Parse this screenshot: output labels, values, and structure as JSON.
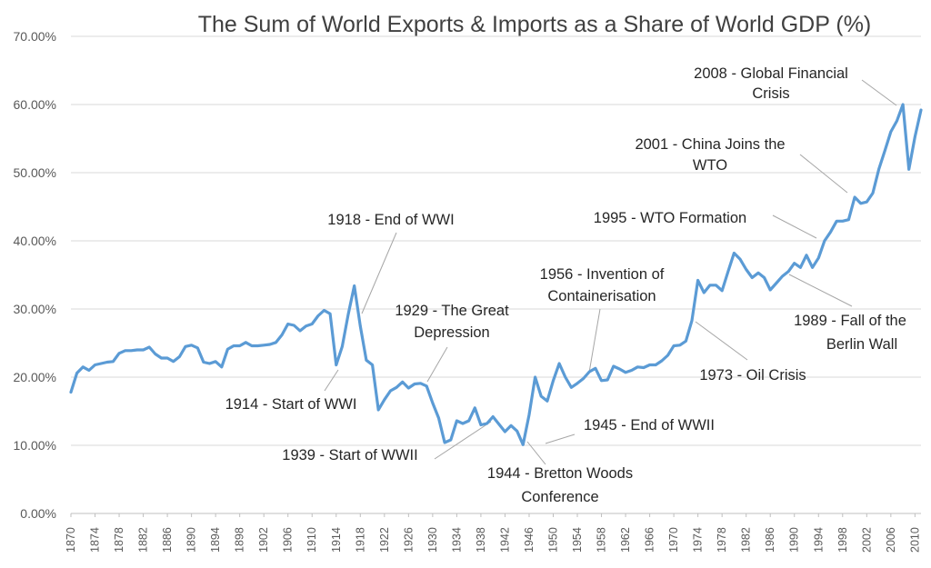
{
  "chart_data": {
    "type": "line",
    "title": "The Sum of World Exports & Imports as a Share of World GDP (%)",
    "xlabel": "",
    "ylabel": "",
    "ylim": [
      0,
      70
    ],
    "ytick_labels": [
      "0.00%",
      "10.00%",
      "20.00%",
      "30.00%",
      "40.00%",
      "50.00%",
      "60.00%",
      "70.00%"
    ],
    "ytick_values": [
      0,
      10,
      20,
      30,
      40,
      50,
      60,
      70
    ],
    "xlim": [
      1870,
      2011
    ],
    "xtick_labels": [
      "1870",
      "1874",
      "1878",
      "1882",
      "1886",
      "1890",
      "1894",
      "1898",
      "1902",
      "1906",
      "1910",
      "1914",
      "1918",
      "1922",
      "1926",
      "1930",
      "1934",
      "1938",
      "1942",
      "1946",
      "1950",
      "1954",
      "1958",
      "1962",
      "1966",
      "1970",
      "1974",
      "1978",
      "1982",
      "1986",
      "1990",
      "1994",
      "1998",
      "2002",
      "2006",
      "2010"
    ],
    "grid": true,
    "legend": false,
    "line_color": "#5b9bd5",
    "series": [
      {
        "x": [
          1870,
          1871,
          1872,
          1873,
          1874,
          1875,
          1876,
          1877,
          1878,
          1879,
          1880,
          1881,
          1882,
          1883,
          1884,
          1885,
          1886,
          1887,
          1888,
          1889,
          1890,
          1891,
          1892,
          1893,
          1894,
          1895,
          1896,
          1897,
          1898,
          1899,
          1900,
          1901,
          1902,
          1903,
          1904,
          1905,
          1906,
          1907,
          1908,
          1909,
          1910,
          1911,
          1912,
          1913,
          1914,
          1915,
          1916,
          1917,
          1918,
          1919,
          1920,
          1921,
          1922,
          1923,
          1924,
          1925,
          1926,
          1927,
          1928,
          1929,
          1930,
          1931,
          1932,
          1933,
          1934,
          1935,
          1936,
          1937,
          1938,
          1939,
          1940,
          1941,
          1942,
          1943,
          1944,
          1945,
          1946,
          1947,
          1948,
          1949,
          1950,
          1951,
          1952,
          1953,
          1954,
          1955,
          1956,
          1957,
          1958,
          1959,
          1960,
          1961,
          1962,
          1963,
          1964,
          1965,
          1966,
          1967,
          1968,
          1969,
          1970,
          1971,
          1972,
          1973,
          1974,
          1975,
          1976,
          1977,
          1978,
          1979,
          1980,
          1981,
          1982,
          1983,
          1984,
          1985,
          1986,
          1987,
          1988,
          1989,
          1990,
          1991,
          1992,
          1993,
          1994,
          1995,
          1996,
          1997,
          1998,
          1999,
          2000,
          2001,
          2002,
          2003,
          2004,
          2005,
          2006,
          2007,
          2008,
          2009,
          2010,
          2011
        ],
        "values": [
          17.8,
          20.6,
          21.5,
          21.0,
          21.8,
          22.0,
          22.2,
          22.3,
          23.5,
          23.9,
          23.9,
          24.0,
          24.0,
          24.4,
          23.4,
          22.8,
          22.8,
          22.3,
          23.0,
          24.5,
          24.7,
          24.3,
          22.2,
          22.0,
          22.3,
          21.5,
          24.1,
          24.6,
          24.6,
          25.1,
          24.6,
          24.6,
          24.7,
          24.8,
          25.1,
          26.2,
          27.8,
          27.6,
          26.8,
          27.5,
          27.8,
          29.0,
          29.8,
          29.3,
          21.8,
          24.5,
          29.2,
          33.4,
          27.5,
          22.5,
          21.8,
          15.2,
          16.7,
          18.0,
          18.5,
          19.3,
          18.4,
          19.0,
          19.1,
          18.7,
          16.2,
          14.0,
          10.4,
          10.8,
          13.6,
          13.2,
          13.6,
          15.5,
          13.0,
          13.2,
          14.2,
          13.1,
          12.0,
          12.9,
          12.1,
          10.1,
          14.5,
          20.0,
          17.2,
          16.5,
          19.5,
          22.0,
          20.0,
          18.5,
          19.1,
          19.8,
          20.8,
          21.3,
          19.5,
          19.6,
          21.6,
          21.2,
          20.7,
          21.0,
          21.5,
          21.4,
          21.8,
          21.8,
          22.4,
          23.2,
          24.6,
          24.7,
          25.3,
          28.3,
          34.2,
          32.4,
          33.5,
          33.5,
          32.7,
          35.5,
          38.2,
          37.3,
          35.8,
          34.6,
          35.3,
          34.6,
          32.8,
          33.8,
          34.8,
          35.5,
          36.7,
          36.1,
          37.9,
          36.1,
          37.5,
          40.0,
          41.3,
          42.9,
          42.9,
          43.1,
          46.4,
          45.5,
          45.7,
          47.0,
          50.5,
          53.2,
          56.0,
          57.6,
          60.0,
          50.5,
          55.3,
          59.2
        ]
      }
    ],
    "annotations": [
      {
        "id": "2008",
        "text_lines": [
          "2008 - Global Financial",
          "Crisis"
        ],
        "year": 2008
      },
      {
        "id": "2001",
        "text_lines": [
          "2001 - China Joins the",
          "WTO"
        ],
        "year": 2001
      },
      {
        "id": "1995",
        "text_lines": [
          "1995 - WTO Formation"
        ],
        "year": 1995
      },
      {
        "id": "1918",
        "text_lines": [
          "1918 - End of WWI"
        ],
        "year": 1918
      },
      {
        "id": "1956",
        "text_lines": [
          "1956 - Invention of",
          "Containerisation"
        ],
        "year": 1956
      },
      {
        "id": "1929",
        "text_lines": [
          "1929 - The Great",
          "Depression"
        ],
        "year": 1929
      },
      {
        "id": "1989",
        "text_lines": [
          "1989 - Fall of the",
          "Berlin Wall"
        ],
        "year": 1989
      },
      {
        "id": "1914",
        "text_lines": [
          "1914 - Start of WWI"
        ],
        "year": 1914
      },
      {
        "id": "1973",
        "text_lines": [
          "1973 - Oil Crisis"
        ],
        "year": 1973
      },
      {
        "id": "1945",
        "text_lines": [
          "1945 - End of WWII"
        ],
        "year": 1945
      },
      {
        "id": "1939",
        "text_lines": [
          "1939 - Start of WWII"
        ],
        "year": 1939
      },
      {
        "id": "1944",
        "text_lines": [
          "1944 - Bretton Woods",
          "Conference"
        ],
        "year": 1944
      }
    ]
  }
}
